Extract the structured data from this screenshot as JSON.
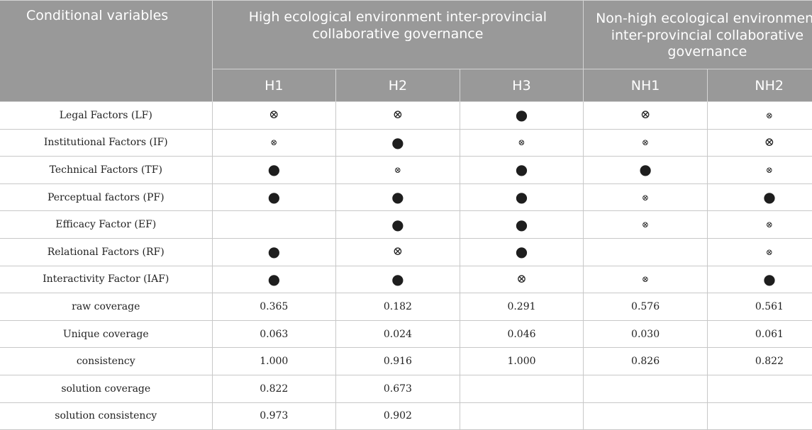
{
  "header": {
    "conditional_label": "Conditional variables",
    "group_high": "High ecological environment inter-provincial collaborative governance",
    "group_nonhigh": "Non-high ecological environment inter-provincial collaborative governance",
    "configs": [
      "H1",
      "H2",
      "H3",
      "NH1",
      "NH2"
    ]
  },
  "rows": [
    {
      "label": "Legal Factors (LF)",
      "cells": [
        "big",
        "big",
        "dot",
        "big",
        "small"
      ]
    },
    {
      "label": "Institutional Factors (IF)",
      "cells": [
        "small",
        "dot",
        "small",
        "small",
        "big"
      ]
    },
    {
      "label": "Technical Factors (TF)",
      "cells": [
        "dot",
        "small",
        "dot",
        "dot",
        "small"
      ]
    },
    {
      "label": "Perceptual factors (PF)",
      "cells": [
        "dot",
        "dot",
        "dot",
        "small",
        "dot"
      ]
    },
    {
      "label": "Efficacy Factor (EF)",
      "cells": [
        "",
        "dot",
        "dot",
        "small",
        "small"
      ]
    },
    {
      "label": "Relational Factors (RF)",
      "cells": [
        "dot",
        "big",
        "dot",
        "",
        "small"
      ]
    },
    {
      "label": "Interactivity Factor (IAF)",
      "cells": [
        "dot",
        "dot",
        "big",
        "small",
        "dot"
      ]
    },
    {
      "label": "raw coverage",
      "cells": [
        "0.365",
        "0.182",
        "0.291",
        "0.576",
        "0.561"
      ]
    },
    {
      "label": "Unique coverage",
      "cells": [
        "0.063",
        "0.024",
        "0.046",
        "0.030",
        "0.061"
      ]
    },
    {
      "label": "consistency",
      "cells": [
        "1.000",
        "0.916",
        "1.000",
        "0.826",
        "0.822"
      ]
    },
    {
      "label": "solution coverage",
      "cells": [
        "0.822",
        "0.673",
        "",
        "",
        ""
      ]
    },
    {
      "label": "solution consistency",
      "cells": [
        "0.973",
        "0.902",
        "",
        "",
        ""
      ]
    }
  ],
  "symbol_icons": {
    "dot": "core-condition-present-icon",
    "big": "core-condition-absent-icon",
    "small": "peripheral-condition-absent-icon"
  }
}
